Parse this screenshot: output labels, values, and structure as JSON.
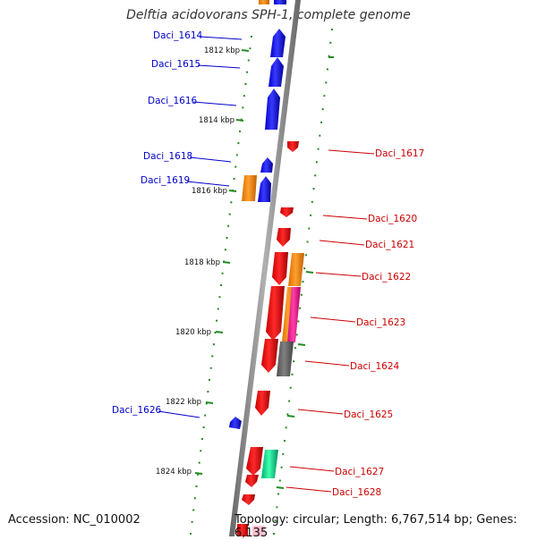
{
  "title": "Delftia acidovorans SPH-1, complete genome",
  "footer": {
    "accession": "Accession: NC_010002",
    "topology": "Topology: circular; Length: 6,767,514 bp; Genes: 6,135"
  },
  "ticks": [
    "1812 kbp",
    "1814 kbp",
    "1816 kbp",
    "1818 kbp",
    "1820 kbp",
    "1822 kbp",
    "1824 kbp"
  ],
  "genes_left": [
    "Daci_1614",
    "Daci_1615",
    "Daci_1616",
    "Daci_1618",
    "Daci_1619",
    "Daci_1626"
  ],
  "genes_right": [
    "Daci_1617",
    "Daci_1620",
    "Daci_1621",
    "Daci_1622",
    "Daci_1623",
    "Daci_1624",
    "Daci_1625",
    "Daci_1627",
    "Daci_1628"
  ],
  "colors": {
    "forward_gene": "#0000ff",
    "reverse_gene": "#ff0000",
    "feature_orange": "#ff8c00",
    "feature_pink": "#ff1493",
    "feature_gray": "#666666",
    "feature_green": "#00e08a",
    "backbone": "#888888",
    "tick_dots": "#228b22",
    "label_left": "#0000cc",
    "label_right": "#cc0000"
  }
}
